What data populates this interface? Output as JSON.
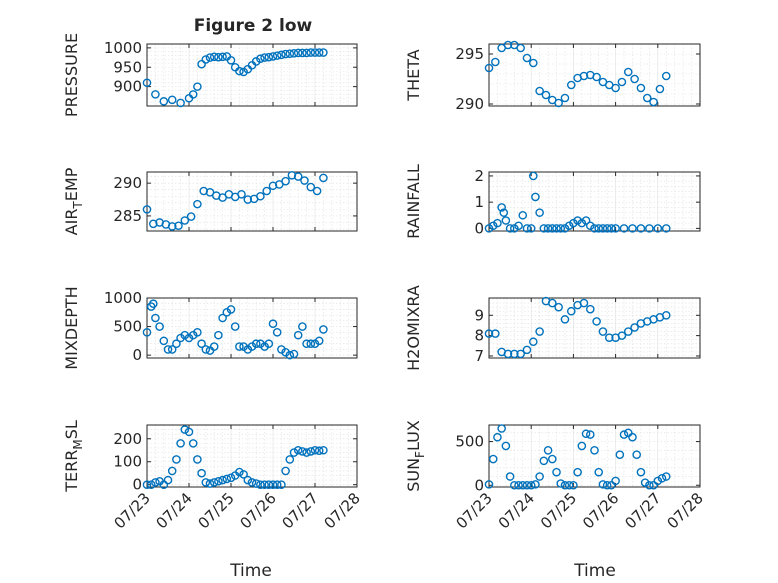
{
  "figure": {
    "title": "Figure 2 low",
    "xlabel": "Time",
    "marker_color": "#0072BD",
    "axis_color": "#262626",
    "grid_color": "#dfdfdf"
  },
  "chart_data": [
    {
      "type": "scatter",
      "name": "PRESSURE",
      "ylabel": "PRESSURE",
      "xlim": [
        "07/23",
        "07/28"
      ],
      "ylim": [
        850,
        1010
      ],
      "yticks": [
        900,
        950,
        1000
      ],
      "xticks": [
        "07/23",
        "07/24",
        "07/25",
        "07/26",
        "07/27",
        "07/28"
      ],
      "show_xtick_labels": false,
      "grid": true,
      "x": [
        0.0,
        0.2,
        0.4,
        0.6,
        0.8,
        1.0,
        1.1,
        1.2,
        1.3,
        1.4,
        1.5,
        1.6,
        1.7,
        1.8,
        1.9,
        2.0,
        2.1,
        2.2,
        2.3,
        2.4,
        2.5,
        2.6,
        2.7,
        2.8,
        2.9,
        3.0,
        3.1,
        3.2,
        3.3,
        3.4,
        3.5,
        3.6,
        3.7,
        3.8,
        3.9,
        4.0,
        4.1,
        4.2
      ],
      "y": [
        910,
        880,
        862,
        866,
        858,
        870,
        880,
        900,
        958,
        970,
        975,
        977,
        976,
        977,
        978,
        968,
        950,
        940,
        938,
        945,
        955,
        965,
        972,
        975,
        976,
        978,
        980,
        982,
        984,
        985,
        986,
        987,
        987,
        987,
        988,
        988,
        988,
        988
      ]
    },
    {
      "type": "scatter",
      "name": "THETA",
      "ylabel": "THETA",
      "xlim": [
        "07/23",
        "07/28"
      ],
      "ylim": [
        289.8,
        296.0
      ],
      "yticks": [
        290,
        295
      ],
      "xticks": [
        "07/23",
        "07/24",
        "07/25",
        "07/26",
        "07/27",
        "07/28"
      ],
      "show_xtick_labels": false,
      "grid": true,
      "x": [
        0.0,
        0.15,
        0.3,
        0.45,
        0.6,
        0.75,
        0.9,
        1.05,
        1.2,
        1.35,
        1.5,
        1.65,
        1.8,
        1.95,
        2.1,
        2.25,
        2.4,
        2.55,
        2.7,
        2.85,
        3.0,
        3.15,
        3.3,
        3.45,
        3.6,
        3.75,
        3.9,
        4.05,
        4.2
      ],
      "y": [
        293.6,
        294.2,
        295.6,
        295.9,
        295.9,
        295.6,
        294.6,
        294.1,
        291.3,
        290.9,
        290.4,
        290.1,
        290.6,
        291.9,
        292.6,
        292.8,
        292.9,
        292.7,
        292.2,
        291.9,
        291.6,
        292.2,
        293.2,
        292.5,
        291.6,
        290.6,
        290.2,
        291.5,
        292.8
      ]
    },
    {
      "type": "scatter",
      "name": "AIR_TEMP",
      "ylabel": "AIR_TEMP",
      "xlim": [
        "07/23",
        "07/28"
      ],
      "ylim": [
        282.7,
        291.7
      ],
      "yticks": [
        285,
        290
      ],
      "xticks": [
        "07/23",
        "07/24",
        "07/25",
        "07/26",
        "07/27",
        "07/28"
      ],
      "show_xtick_labels": false,
      "grid": true,
      "x": [
        0.0,
        0.15,
        0.3,
        0.45,
        0.6,
        0.75,
        0.9,
        1.05,
        1.2,
        1.35,
        1.5,
        1.65,
        1.8,
        1.95,
        2.1,
        2.25,
        2.4,
        2.55,
        2.7,
        2.85,
        3.0,
        3.15,
        3.3,
        3.45,
        3.6,
        3.75,
        3.9,
        4.05,
        4.2
      ],
      "y": [
        286.0,
        283.8,
        284.0,
        283.7,
        283.4,
        283.5,
        284.3,
        284.9,
        286.8,
        288.8,
        288.6,
        288.1,
        287.8,
        288.3,
        287.9,
        288.3,
        287.5,
        287.6,
        288.0,
        288.8,
        289.6,
        289.8,
        290.3,
        291.2,
        291.0,
        290.4,
        289.4,
        288.8,
        290.8
      ]
    },
    {
      "type": "scatter",
      "name": "RAINFALL",
      "ylabel": "RAINFALL",
      "xlim": [
        "07/23",
        "07/28"
      ],
      "ylim": [
        -0.1,
        2.15
      ],
      "yticks": [
        0,
        1,
        2
      ],
      "xticks": [
        "07/23",
        "07/24",
        "07/25",
        "07/26",
        "07/27",
        "07/28"
      ],
      "show_xtick_labels": false,
      "grid": true,
      "x": [
        0.0,
        0.1,
        0.2,
        0.3,
        0.35,
        0.4,
        0.5,
        0.6,
        0.7,
        0.8,
        0.9,
        1.0,
        1.05,
        1.1,
        1.2,
        1.3,
        1.4,
        1.5,
        1.6,
        1.7,
        1.8,
        1.9,
        2.0,
        2.1,
        2.2,
        2.3,
        2.4,
        2.5,
        2.6,
        2.7,
        2.8,
        2.9,
        3.0,
        3.2,
        3.4,
        3.6,
        3.8,
        4.0,
        4.2
      ],
      "y": [
        0.0,
        0.1,
        0.2,
        0.8,
        0.6,
        0.3,
        0.0,
        0.0,
        0.1,
        0.5,
        0.0,
        0.0,
        2.0,
        1.2,
        0.6,
        0.0,
        0.0,
        0.0,
        0.0,
        0.0,
        0.0,
        0.1,
        0.2,
        0.3,
        0.2,
        0.3,
        0.1,
        0.0,
        0.0,
        0.0,
        0.0,
        0.0,
        0.0,
        0.0,
        0.0,
        0.0,
        0.0,
        0.0,
        0.0
      ]
    },
    {
      "type": "scatter",
      "name": "MIXDEPTH",
      "ylabel": "MIXDEPTH",
      "xlim": [
        "07/23",
        "07/28"
      ],
      "ylim": [
        -50,
        1000
      ],
      "yticks": [
        0,
        500,
        1000
      ],
      "xticks": [
        "07/23",
        "07/24",
        "07/25",
        "07/26",
        "07/27",
        "07/28"
      ],
      "show_xtick_labels": false,
      "grid": true,
      "x": [
        0.0,
        0.1,
        0.15,
        0.2,
        0.3,
        0.4,
        0.5,
        0.6,
        0.7,
        0.8,
        0.9,
        1.0,
        1.1,
        1.2,
        1.3,
        1.4,
        1.5,
        1.6,
        1.7,
        1.8,
        1.9,
        2.0,
        2.1,
        2.2,
        2.3,
        2.4,
        2.5,
        2.6,
        2.7,
        2.8,
        2.9,
        3.0,
        3.1,
        3.2,
        3.3,
        3.4,
        3.5,
        3.6,
        3.7,
        3.8,
        3.9,
        4.0,
        4.1,
        4.2
      ],
      "y": [
        400,
        850,
        900,
        650,
        500,
        250,
        100,
        100,
        200,
        300,
        350,
        300,
        350,
        400,
        200,
        100,
        80,
        150,
        350,
        650,
        750,
        800,
        500,
        150,
        150,
        100,
        150,
        200,
        200,
        150,
        200,
        550,
        400,
        100,
        50,
        0,
        20,
        350,
        500,
        200,
        200,
        200,
        250,
        450
      ]
    },
    {
      "type": "scatter",
      "name": "H2OMIXRA",
      "ylabel": "H2OMIXRA",
      "xlim": [
        "07/23",
        "07/28"
      ],
      "ylim": [
        6.9,
        9.85
      ],
      "yticks": [
        7,
        8,
        9
      ],
      "xticks": [
        "07/23",
        "07/24",
        "07/25",
        "07/26",
        "07/27",
        "07/28"
      ],
      "show_xtick_labels": false,
      "grid": true,
      "x": [
        0.0,
        0.15,
        0.3,
        0.45,
        0.6,
        0.75,
        0.9,
        1.05,
        1.2,
        1.35,
        1.5,
        1.65,
        1.8,
        1.95,
        2.1,
        2.25,
        2.4,
        2.55,
        2.7,
        2.85,
        3.0,
        3.15,
        3.3,
        3.45,
        3.6,
        3.75,
        3.9,
        4.05,
        4.2
      ],
      "y": [
        8.1,
        8.1,
        7.2,
        7.1,
        7.1,
        7.1,
        7.3,
        7.7,
        8.2,
        9.7,
        9.6,
        9.4,
        8.8,
        9.2,
        9.5,
        9.6,
        9.3,
        8.7,
        8.2,
        7.9,
        7.9,
        8.0,
        8.2,
        8.4,
        8.6,
        8.7,
        8.8,
        8.9,
        9.0
      ]
    },
    {
      "type": "scatter",
      "name": "TERR_MSL",
      "ylabel": "TERR_MSL",
      "xlim": [
        "07/23",
        "07/28"
      ],
      "ylim": [
        -10,
        260
      ],
      "yticks": [
        0,
        100,
        200
      ],
      "xticks": [
        "07/23",
        "07/24",
        "07/25",
        "07/26",
        "07/27",
        "07/28"
      ],
      "show_xtick_labels": true,
      "grid": true,
      "x": [
        0.0,
        0.1,
        0.2,
        0.3,
        0.4,
        0.5,
        0.6,
        0.7,
        0.8,
        0.9,
        1.0,
        1.1,
        1.2,
        1.3,
        1.4,
        1.5,
        1.6,
        1.7,
        1.8,
        1.9,
        2.0,
        2.1,
        2.2,
        2.3,
        2.4,
        2.5,
        2.6,
        2.7,
        2.8,
        2.9,
        3.0,
        3.1,
        3.2,
        3.3,
        3.4,
        3.5,
        3.6,
        3.7,
        3.8,
        3.9,
        4.0,
        4.1,
        4.2
      ],
      "y": [
        0,
        0,
        10,
        15,
        0,
        20,
        60,
        110,
        180,
        240,
        230,
        180,
        110,
        50,
        10,
        5,
        10,
        15,
        20,
        25,
        30,
        40,
        55,
        45,
        20,
        10,
        5,
        0,
        0,
        0,
        0,
        0,
        0,
        60,
        110,
        140,
        150,
        145,
        140,
        145,
        150,
        148,
        150
      ]
    },
    {
      "type": "scatter",
      "name": "SUN_FLUX",
      "ylabel": "SUN_FLUX",
      "xlim": [
        "07/23",
        "07/28"
      ],
      "ylim": [
        -20,
        690
      ],
      "yticks": [
        0,
        500
      ],
      "xticks": [
        "07/23",
        "07/24",
        "07/25",
        "07/26",
        "07/27",
        "07/28"
      ],
      "show_xtick_labels": true,
      "grid": true,
      "x": [
        0.0,
        0.1,
        0.2,
        0.3,
        0.4,
        0.5,
        0.6,
        0.7,
        0.8,
        0.9,
        1.0,
        1.1,
        1.2,
        1.3,
        1.4,
        1.5,
        1.6,
        1.7,
        1.8,
        1.9,
        2.0,
        2.1,
        2.2,
        2.3,
        2.4,
        2.5,
        2.6,
        2.7,
        2.8,
        2.9,
        3.0,
        3.1,
        3.2,
        3.3,
        3.4,
        3.5,
        3.6,
        3.7,
        3.8,
        3.9,
        4.0,
        4.1,
        4.2
      ],
      "y": [
        10,
        300,
        550,
        650,
        450,
        100,
        0,
        0,
        0,
        0,
        0,
        10,
        100,
        280,
        400,
        300,
        150,
        20,
        0,
        0,
        0,
        150,
        450,
        590,
        580,
        400,
        150,
        10,
        0,
        0,
        50,
        350,
        580,
        600,
        550,
        350,
        150,
        30,
        0,
        0,
        50,
        80,
        100
      ]
    }
  ]
}
